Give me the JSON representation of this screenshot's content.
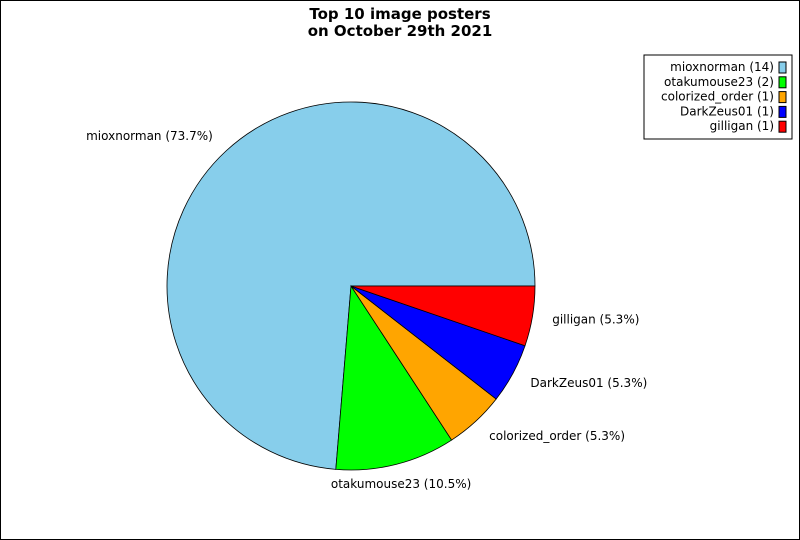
{
  "chart_data": {
    "type": "pie",
    "title": [
      "Top 10 image posters",
      "on October 29th 2021"
    ],
    "slices": [
      {
        "label": "mioxnorman",
        "value": 14,
        "percent": "73.7%",
        "color": "#87ceeb"
      },
      {
        "label": "otakumouse23",
        "value": 2,
        "percent": "10.5%",
        "color": "#00ff00"
      },
      {
        "label": "colorized_order",
        "value": 1,
        "percent": "5.3%",
        "color": "#ffa500"
      },
      {
        "label": "DarkZeus01",
        "value": 1,
        "percent": "5.3%",
        "color": "#0000ff"
      },
      {
        "label": "gilligan",
        "value": 1,
        "percent": "5.3%",
        "color": "#ff0000"
      }
    ],
    "start_angle_deg": 0,
    "direction": "counterclockwise",
    "legend_position": "top-right"
  }
}
